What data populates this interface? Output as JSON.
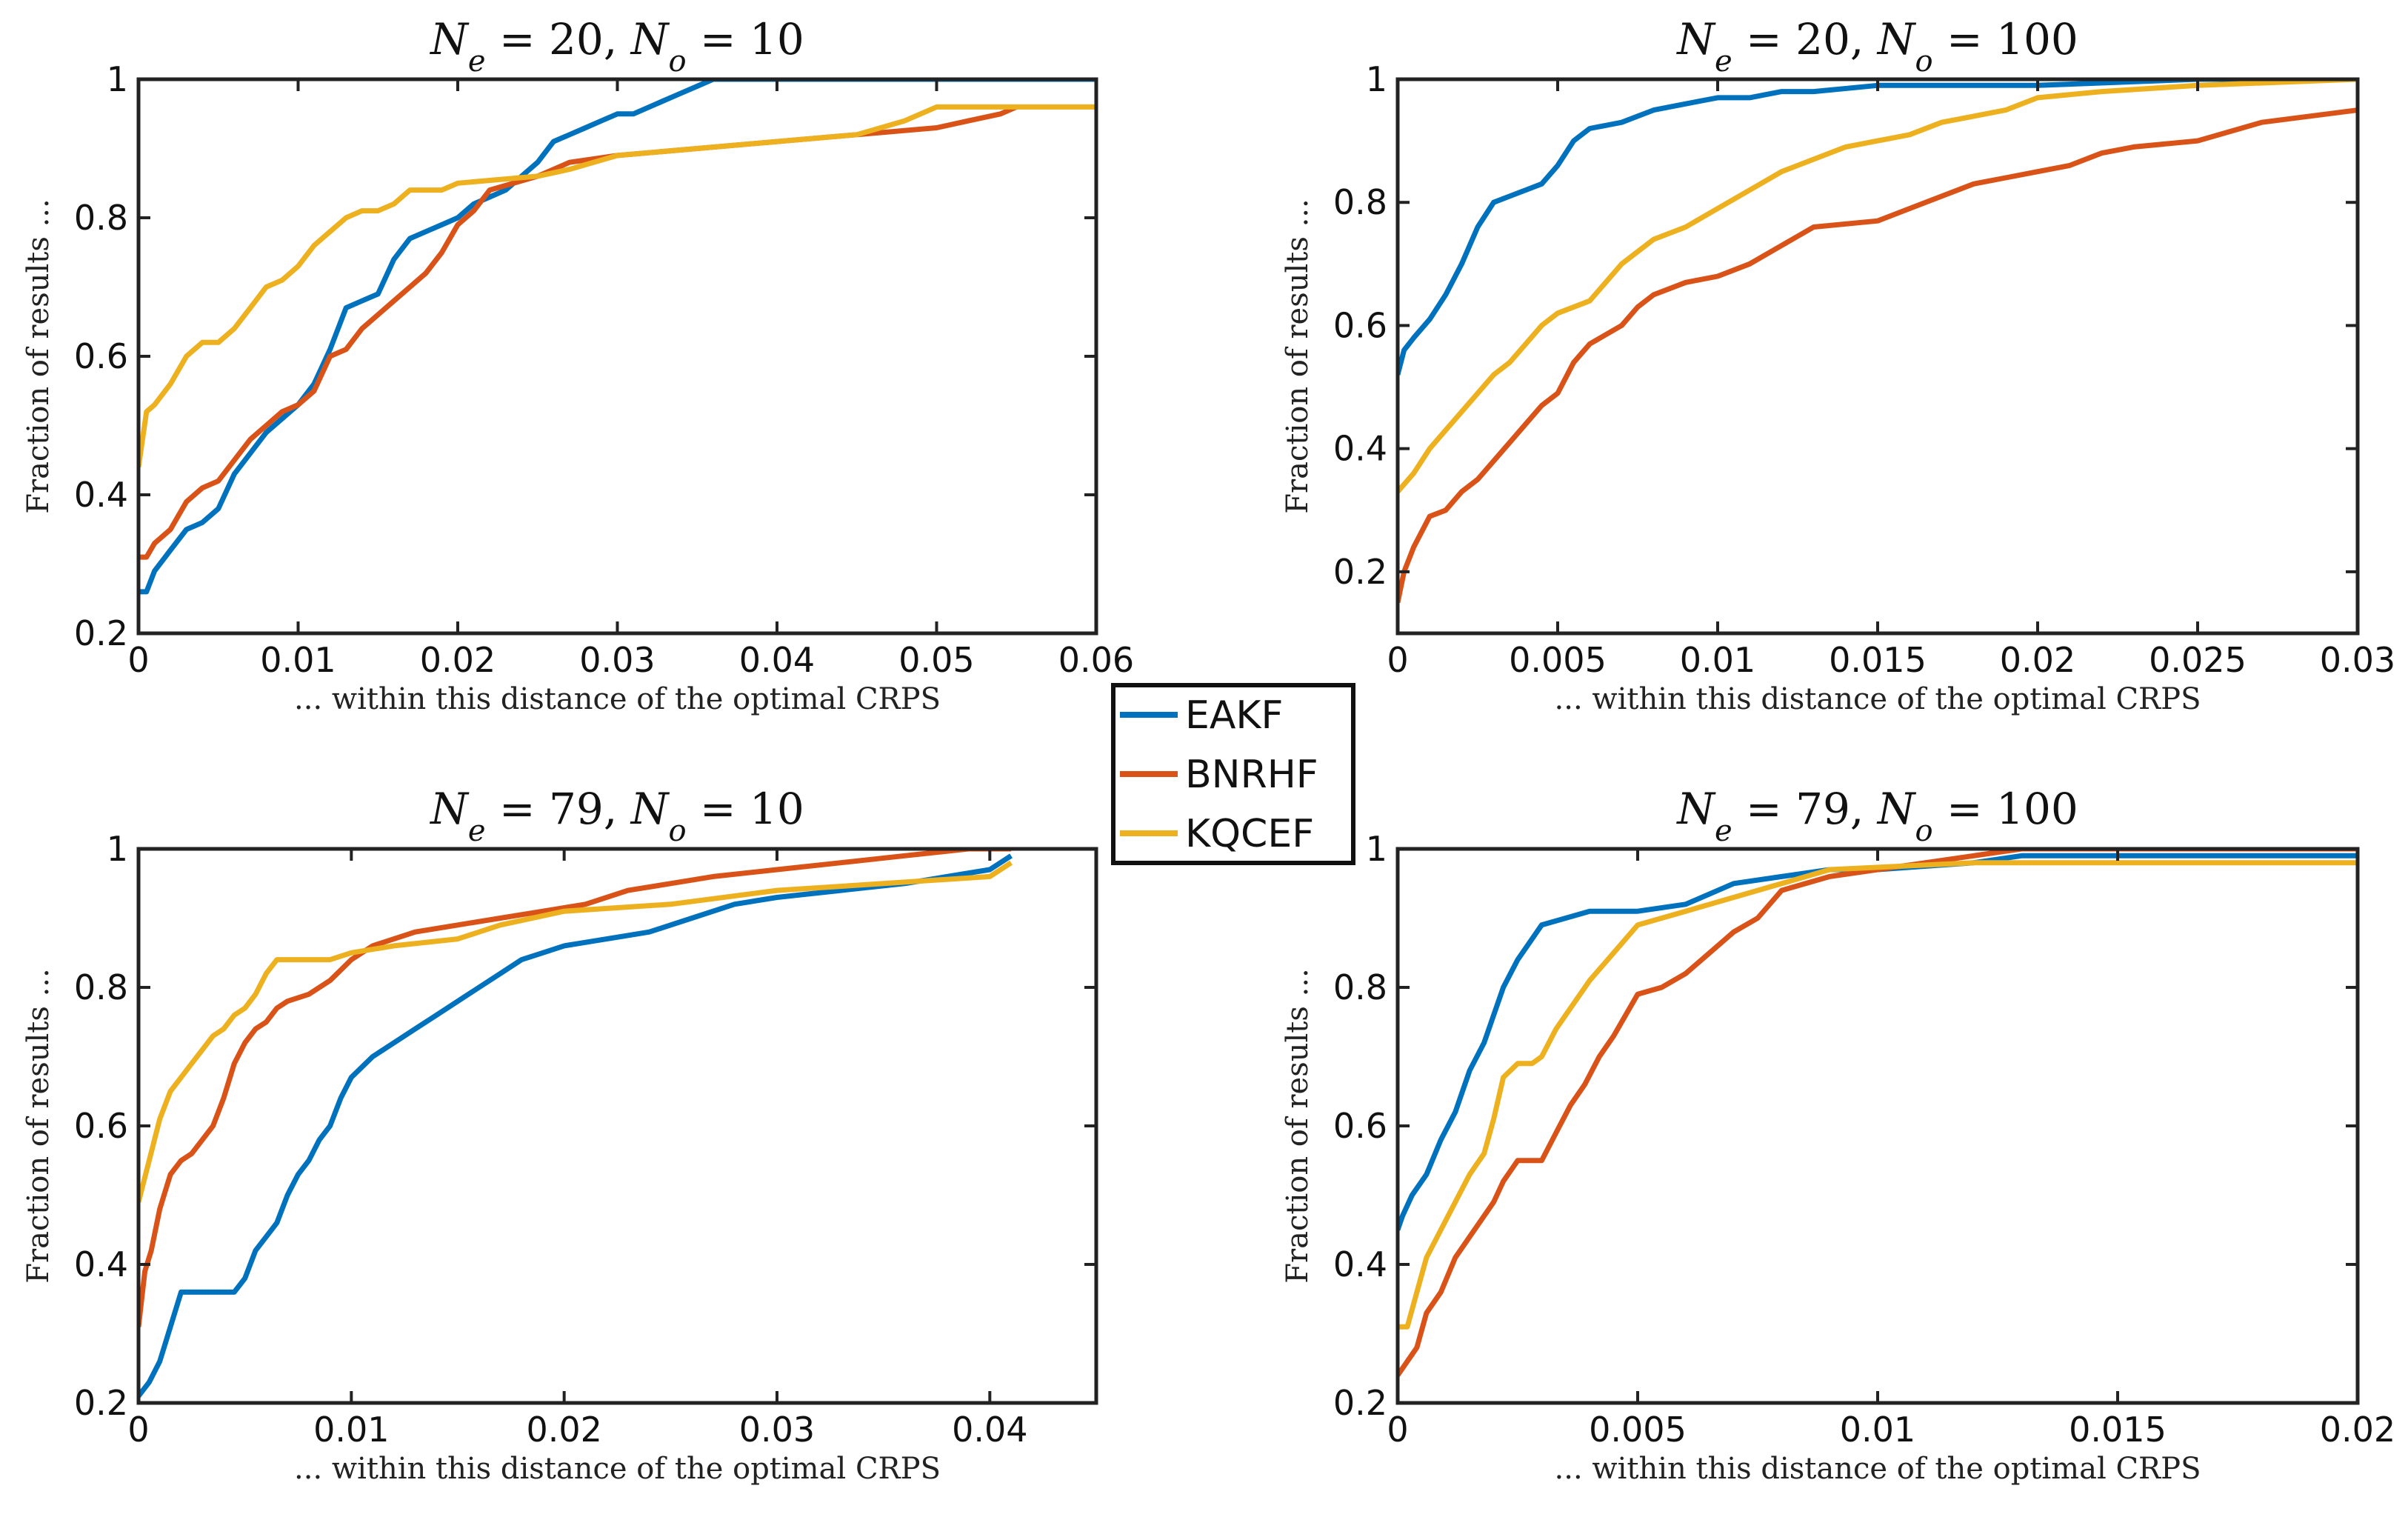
{
  "colors": {
    "EAKF": "#0072BD",
    "BNRHF": "#D95319",
    "KQCEF": "#EDB120"
  },
  "legend": [
    "EAKF",
    "BNRHF",
    "KQCEF"
  ],
  "chart_data": [
    {
      "type": "line",
      "title": "N_e = 20, N_o = 10",
      "xlabel": "... within this distance of the optimal CRPS",
      "ylabel": "Fraction of results ...",
      "xlim": [
        0,
        0.06
      ],
      "ylim": [
        0.2,
        1
      ],
      "xticks": [
        "0",
        "0.01",
        "0.02",
        "0.03",
        "0.04",
        "0.05",
        "0.06"
      ],
      "xtick_values": [
        0,
        0.01,
        0.02,
        0.03,
        0.04,
        0.05,
        0.06
      ],
      "yticks": [
        "0.2",
        "0.4",
        "0.6",
        "0.8",
        "1"
      ],
      "ytick_values": [
        0.2,
        0.4,
        0.6,
        0.8,
        1
      ],
      "series": [
        {
          "name": "EAKF",
          "x": [
            0,
            0.0005,
            0.001,
            0.002,
            0.003,
            0.004,
            0.005,
            0.006,
            0.007,
            0.008,
            0.009,
            0.01,
            0.011,
            0.012,
            0.013,
            0.014,
            0.015,
            0.016,
            0.017,
            0.018,
            0.019,
            0.02,
            0.021,
            0.022,
            0.023,
            0.024,
            0.025,
            0.026,
            0.027,
            0.028,
            0.029,
            0.03,
            0.031,
            0.032,
            0.033,
            0.034,
            0.035,
            0.036,
            0.06
          ],
          "y": [
            0.26,
            0.26,
            0.29,
            0.32,
            0.35,
            0.36,
            0.38,
            0.43,
            0.46,
            0.49,
            0.51,
            0.53,
            0.56,
            0.61,
            0.67,
            0.68,
            0.69,
            0.74,
            0.77,
            0.78,
            0.79,
            0.8,
            0.82,
            0.83,
            0.84,
            0.86,
            0.88,
            0.91,
            0.92,
            0.93,
            0.94,
            0.95,
            0.95,
            0.96,
            0.97,
            0.98,
            0.99,
            1,
            1
          ]
        },
        {
          "name": "BNRHF",
          "x": [
            0,
            0.0005,
            0.001,
            0.002,
            0.003,
            0.004,
            0.005,
            0.006,
            0.007,
            0.008,
            0.009,
            0.01,
            0.011,
            0.012,
            0.013,
            0.014,
            0.015,
            0.016,
            0.017,
            0.018,
            0.019,
            0.02,
            0.021,
            0.022,
            0.025,
            0.027,
            0.03,
            0.035,
            0.04,
            0.045,
            0.05,
            0.052,
            0.054,
            0.055
          ],
          "y": [
            0.31,
            0.31,
            0.33,
            0.35,
            0.39,
            0.41,
            0.42,
            0.45,
            0.48,
            0.5,
            0.52,
            0.53,
            0.55,
            0.6,
            0.61,
            0.64,
            0.66,
            0.68,
            0.7,
            0.72,
            0.75,
            0.79,
            0.81,
            0.84,
            0.86,
            0.88,
            0.89,
            0.9,
            0.91,
            0.92,
            0.93,
            0.94,
            0.95,
            0.96
          ]
        },
        {
          "name": "KQCEF",
          "x": [
            0,
            0.0005,
            0.001,
            0.002,
            0.003,
            0.004,
            0.005,
            0.006,
            0.007,
            0.008,
            0.009,
            0.01,
            0.011,
            0.012,
            0.013,
            0.014,
            0.015,
            0.016,
            0.017,
            0.018,
            0.019,
            0.02,
            0.025,
            0.027,
            0.03,
            0.035,
            0.04,
            0.045,
            0.048,
            0.05,
            0.06
          ],
          "y": [
            0.44,
            0.52,
            0.53,
            0.56,
            0.6,
            0.62,
            0.62,
            0.64,
            0.67,
            0.7,
            0.71,
            0.73,
            0.76,
            0.78,
            0.8,
            0.81,
            0.81,
            0.82,
            0.84,
            0.84,
            0.84,
            0.85,
            0.86,
            0.87,
            0.89,
            0.9,
            0.91,
            0.92,
            0.94,
            0.96,
            0.96
          ]
        }
      ]
    },
    {
      "type": "line",
      "title": "N_e = 20, N_o = 100",
      "xlabel": "... within this distance of the optimal CRPS",
      "ylabel": "Fraction of results ...",
      "xlim": [
        0,
        0.03
      ],
      "ylim": [
        0.1,
        1
      ],
      "xticks": [
        "0",
        "0.005",
        "0.01",
        "0.015",
        "0.02",
        "0.025",
        "0.03"
      ],
      "xtick_values": [
        0,
        0.005,
        0.01,
        0.015,
        0.02,
        0.025,
        0.03
      ],
      "yticks": [
        "0.2",
        "0.4",
        "0.6",
        "0.8",
        "1"
      ],
      "ytick_values": [
        0.2,
        0.4,
        0.6,
        0.8,
        1
      ],
      "series": [
        {
          "name": "EAKF",
          "x": [
            0,
            0.0002,
            0.0005,
            0.001,
            0.0015,
            0.002,
            0.0025,
            0.003,
            0.0035,
            0.004,
            0.0045,
            0.005,
            0.0055,
            0.006,
            0.007,
            0.0075,
            0.008,
            0.009,
            0.01,
            0.011,
            0.012,
            0.013,
            0.015,
            0.02,
            0.025,
            0.03
          ],
          "y": [
            0.52,
            0.56,
            0.58,
            0.61,
            0.65,
            0.7,
            0.76,
            0.8,
            0.81,
            0.82,
            0.83,
            0.86,
            0.9,
            0.92,
            0.93,
            0.94,
            0.95,
            0.96,
            0.97,
            0.97,
            0.98,
            0.98,
            0.99,
            0.99,
            1,
            1
          ]
        },
        {
          "name": "BNRHF",
          "x": [
            0,
            0.0002,
            0.0005,
            0.001,
            0.0015,
            0.002,
            0.0025,
            0.003,
            0.0035,
            0.004,
            0.0045,
            0.005,
            0.0055,
            0.006,
            0.007,
            0.0075,
            0.008,
            0.009,
            0.01,
            0.011,
            0.012,
            0.013,
            0.015,
            0.016,
            0.017,
            0.018,
            0.019,
            0.02,
            0.021,
            0.022,
            0.023,
            0.025,
            0.027,
            0.03
          ],
          "y": [
            0.15,
            0.2,
            0.24,
            0.29,
            0.3,
            0.33,
            0.35,
            0.38,
            0.41,
            0.44,
            0.47,
            0.49,
            0.54,
            0.57,
            0.6,
            0.63,
            0.65,
            0.67,
            0.68,
            0.7,
            0.73,
            0.76,
            0.77,
            0.79,
            0.81,
            0.83,
            0.84,
            0.85,
            0.86,
            0.88,
            0.89,
            0.9,
            0.93,
            0.95
          ]
        },
        {
          "name": "KQCEF",
          "x": [
            0,
            0.0005,
            0.001,
            0.0015,
            0.002,
            0.0025,
            0.003,
            0.0035,
            0.004,
            0.0045,
            0.005,
            0.006,
            0.0065,
            0.007,
            0.0075,
            0.008,
            0.009,
            0.01,
            0.011,
            0.012,
            0.013,
            0.014,
            0.015,
            0.016,
            0.017,
            0.018,
            0.019,
            0.02,
            0.022,
            0.025,
            0.03
          ],
          "y": [
            0.33,
            0.36,
            0.4,
            0.43,
            0.46,
            0.49,
            0.52,
            0.54,
            0.57,
            0.6,
            0.62,
            0.64,
            0.67,
            0.7,
            0.72,
            0.74,
            0.76,
            0.79,
            0.82,
            0.85,
            0.87,
            0.89,
            0.9,
            0.91,
            0.93,
            0.94,
            0.95,
            0.97,
            0.98,
            0.99,
            1
          ]
        }
      ]
    },
    {
      "type": "line",
      "title": "N_e = 79, N_o = 10",
      "xlabel": "... within this distance of the optimal CRPS",
      "ylabel": "Fraction of results ...",
      "xlim": [
        0,
        0.045
      ],
      "ylim": [
        0.2,
        1
      ],
      "xticks": [
        "0",
        "0.01",
        "0.02",
        "0.03",
        "0.04"
      ],
      "xtick_values": [
        0,
        0.01,
        0.02,
        0.03,
        0.04
      ],
      "yticks": [
        "0.2",
        "0.4",
        "0.6",
        "0.8",
        "1"
      ],
      "ytick_values": [
        0.2,
        0.4,
        0.6,
        0.8,
        1
      ],
      "series": [
        {
          "name": "EAKF",
          "x": [
            0,
            0.0005,
            0.001,
            0.0015,
            0.002,
            0.0025,
            0.003,
            0.0035,
            0.004,
            0.0045,
            0.005,
            0.0055,
            0.006,
            0.0065,
            0.007,
            0.0075,
            0.008,
            0.0085,
            0.009,
            0.0095,
            0.01,
            0.011,
            0.012,
            0.013,
            0.014,
            0.015,
            0.016,
            0.017,
            0.018,
            0.019,
            0.02,
            0.022,
            0.024,
            0.026,
            0.028,
            0.03,
            0.033,
            0.036,
            0.04,
            0.041
          ],
          "y": [
            0.21,
            0.23,
            0.26,
            0.31,
            0.36,
            0.36,
            0.36,
            0.36,
            0.36,
            0.36,
            0.38,
            0.42,
            0.44,
            0.46,
            0.5,
            0.53,
            0.55,
            0.58,
            0.6,
            0.64,
            0.67,
            0.7,
            0.72,
            0.74,
            0.76,
            0.78,
            0.8,
            0.82,
            0.84,
            0.85,
            0.86,
            0.87,
            0.88,
            0.9,
            0.92,
            0.93,
            0.94,
            0.95,
            0.97,
            0.99
          ]
        },
        {
          "name": "BNRHF",
          "x": [
            0,
            0.0003,
            0.0006,
            0.001,
            0.0015,
            0.002,
            0.0025,
            0.003,
            0.0035,
            0.004,
            0.0045,
            0.005,
            0.0055,
            0.006,
            0.0065,
            0.007,
            0.008,
            0.009,
            0.01,
            0.011,
            0.012,
            0.013,
            0.015,
            0.017,
            0.019,
            0.021,
            0.023,
            0.025,
            0.027,
            0.03,
            0.033,
            0.036,
            0.039,
            0.041
          ],
          "y": [
            0.31,
            0.39,
            0.42,
            0.48,
            0.53,
            0.55,
            0.56,
            0.58,
            0.6,
            0.64,
            0.69,
            0.72,
            0.74,
            0.75,
            0.77,
            0.78,
            0.79,
            0.81,
            0.84,
            0.86,
            0.87,
            0.88,
            0.89,
            0.9,
            0.91,
            0.92,
            0.94,
            0.95,
            0.96,
            0.97,
            0.98,
            0.99,
            1,
            1
          ]
        },
        {
          "name": "KQCEF",
          "x": [
            0,
            0.0005,
            0.001,
            0.0015,
            0.002,
            0.0025,
            0.003,
            0.0035,
            0.004,
            0.0045,
            0.005,
            0.0055,
            0.006,
            0.0065,
            0.007,
            0.008,
            0.009,
            0.01,
            0.012,
            0.015,
            0.017,
            0.02,
            0.025,
            0.03,
            0.035,
            0.04,
            0.041
          ],
          "y": [
            0.49,
            0.55,
            0.61,
            0.65,
            0.67,
            0.69,
            0.71,
            0.73,
            0.74,
            0.76,
            0.77,
            0.79,
            0.82,
            0.84,
            0.84,
            0.84,
            0.84,
            0.85,
            0.86,
            0.87,
            0.89,
            0.91,
            0.92,
            0.94,
            0.95,
            0.96,
            0.98
          ]
        }
      ]
    },
    {
      "type": "line",
      "title": "N_e = 79, N_o = 100",
      "xlabel": "... within this distance of the optimal CRPS",
      "ylabel": "Fraction of results ...",
      "xlim": [
        0,
        0.02
      ],
      "ylim": [
        0.2,
        1
      ],
      "xticks": [
        "0",
        "0.005",
        "0.01",
        "0.015",
        "0.02"
      ],
      "xtick_values": [
        0,
        0.005,
        0.01,
        0.015,
        0.02
      ],
      "yticks": [
        "0.2",
        "0.4",
        "0.6",
        "0.8",
        "1"
      ],
      "ytick_values": [
        0.2,
        0.4,
        0.6,
        0.8,
        1
      ],
      "series": [
        {
          "name": "EAKF",
          "x": [
            0,
            0.0001,
            0.0003,
            0.0006,
            0.0009,
            0.0012,
            0.0015,
            0.0018,
            0.002,
            0.0022,
            0.0025,
            0.0028,
            0.003,
            0.0035,
            0.004,
            0.005,
            0.006,
            0.007,
            0.008,
            0.009,
            0.01,
            0.012,
            0.013,
            0.02
          ],
          "y": [
            0.45,
            0.47,
            0.5,
            0.53,
            0.58,
            0.62,
            0.68,
            0.72,
            0.76,
            0.8,
            0.84,
            0.87,
            0.89,
            0.9,
            0.91,
            0.91,
            0.92,
            0.95,
            0.96,
            0.97,
            0.97,
            0.98,
            0.99,
            0.99
          ]
        },
        {
          "name": "BNRHF",
          "x": [
            0,
            0.0002,
            0.0004,
            0.0006,
            0.0009,
            0.0012,
            0.0015,
            0.0018,
            0.002,
            0.0022,
            0.0025,
            0.0028,
            0.003,
            0.0033,
            0.0036,
            0.0039,
            0.0042,
            0.0045,
            0.005,
            0.0055,
            0.006,
            0.0065,
            0.007,
            0.0075,
            0.008,
            0.009,
            0.01,
            0.011,
            0.012,
            0.013,
            0.02
          ],
          "y": [
            0.24,
            0.26,
            0.28,
            0.33,
            0.36,
            0.41,
            0.44,
            0.47,
            0.49,
            0.52,
            0.55,
            0.55,
            0.55,
            0.59,
            0.63,
            0.66,
            0.7,
            0.73,
            0.79,
            0.8,
            0.82,
            0.85,
            0.88,
            0.9,
            0.94,
            0.96,
            0.97,
            0.98,
            0.99,
            1,
            1
          ]
        },
        {
          "name": "KQCEF",
          "x": [
            0,
            0.0002,
            0.0004,
            0.0006,
            0.0009,
            0.0012,
            0.0015,
            0.0018,
            0.002,
            0.0022,
            0.0025,
            0.0028,
            0.003,
            0.0033,
            0.0036,
            0.004,
            0.0045,
            0.005,
            0.0055,
            0.006,
            0.007,
            0.008,
            0.009,
            0.012,
            0.02
          ],
          "y": [
            0.31,
            0.31,
            0.36,
            0.41,
            0.45,
            0.49,
            0.53,
            0.56,
            0.61,
            0.67,
            0.69,
            0.69,
            0.7,
            0.74,
            0.77,
            0.81,
            0.85,
            0.89,
            0.9,
            0.91,
            0.93,
            0.95,
            0.97,
            0.98,
            0.98
          ]
        }
      ]
    }
  ]
}
